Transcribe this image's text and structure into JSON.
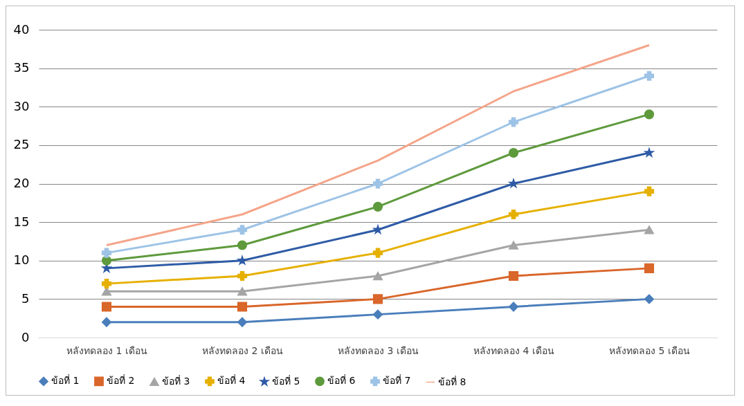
{
  "chart_data": {
    "type": "line",
    "categories": [
      "หลังทดลอง 1 เดือน",
      "หลังทดลอง 2 เดือน",
      "หลังทดลอง 3 เดือน",
      "หลังทดลอง 4 เดือน",
      "หลังทดลอง 5 เดือน"
    ],
    "series": [
      {
        "name": "ข้อที่ 1",
        "color": "#4a7ebb",
        "marker": "diamond",
        "values": [
          2,
          2,
          3,
          4,
          5
        ]
      },
      {
        "name": "ข้อที่ 2",
        "color": "#d9662a",
        "marker": "square",
        "values": [
          4,
          4,
          5,
          8,
          9
        ]
      },
      {
        "name": "ข้อที่ 3",
        "color": "#a5a5a5",
        "marker": "triangle",
        "values": [
          6,
          6,
          8,
          12,
          14
        ]
      },
      {
        "name": "ข้อที่ 4",
        "color": "#e6b000",
        "marker": "cross",
        "values": [
          7,
          8,
          11,
          16,
          19
        ]
      },
      {
        "name": "ข้อที่ 5",
        "color": "#2e5ba6",
        "marker": "star",
        "values": [
          9,
          10,
          14,
          20,
          24
        ]
      },
      {
        "name": "ข้อที่ 6",
        "color": "#5e9a3c",
        "marker": "circle",
        "values": [
          10,
          12,
          17,
          24,
          29
        ]
      },
      {
        "name": "ข้อที่ 7",
        "color": "#9dc3e6",
        "marker": "cross",
        "values": [
          11,
          14,
          20,
          28,
          34
        ]
      },
      {
        "name": "ข้อที่ 8",
        "color": "#f4a58a",
        "marker": "none",
        "values": [
          12,
          16,
          23,
          32,
          38
        ]
      }
    ],
    "ylim": [
      0,
      40
    ],
    "yticks": [
      0,
      5,
      10,
      15,
      20,
      25,
      30,
      35,
      40
    ],
    "grid": "y",
    "legend": "bottom"
  }
}
